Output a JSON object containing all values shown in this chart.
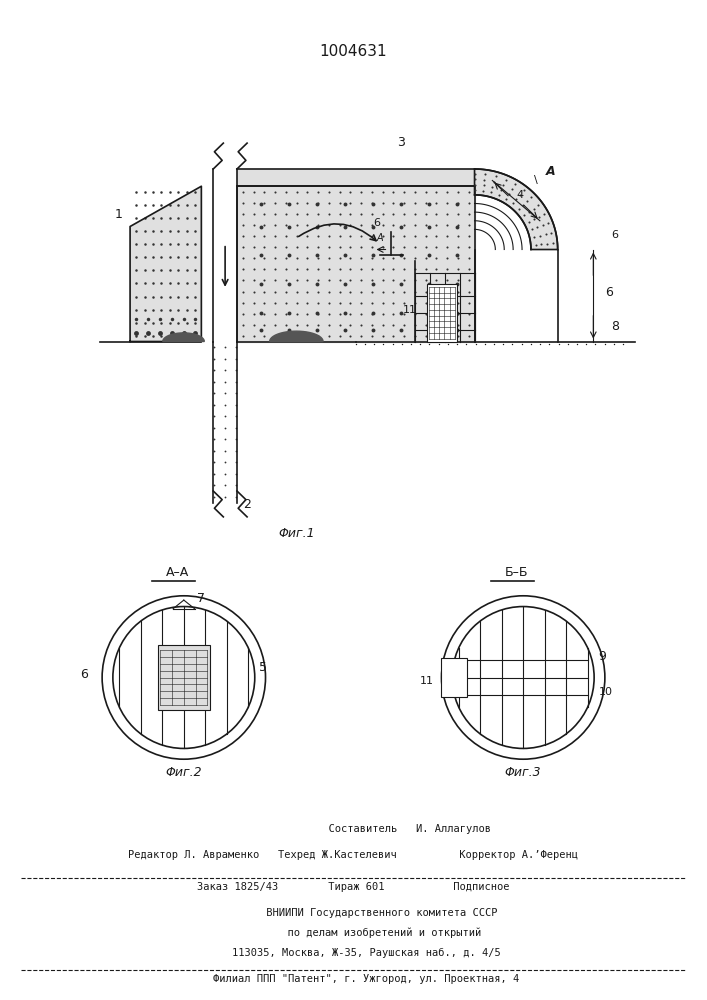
{
  "patent_number": "1004631",
  "fig1_caption": "Φиг.1",
  "fig2_caption": "Φиг.2",
  "fig3_caption": "Φиг.3",
  "label_AA": "A–A",
  "label_BB": "Б–Б",
  "line_color": "#1a1a1a",
  "bg_color": "#ffffff",
  "dot_color": "#333333",
  "footer_line1": "                  Составитель   И. Аллагулов",
  "footer_line2": "Редактор Л. Авраменко   Техред Ж.Кастелевич          Корректор А.’Ференц",
  "footer_line3": "Заказ 1825/43        Тираж 601           Подписное",
  "footer_line4": "         ВНИИПИ Государственного комитета СССР",
  "footer_line5": "          по делам изобретений и открытий",
  "footer_line6": "    113035, Москва, Ж-35, Раушская наб., д. 4/5",
  "footer_line7": "    Филиал ППП \"Патент\", г. Ужгород, ул. Проектная, 4"
}
